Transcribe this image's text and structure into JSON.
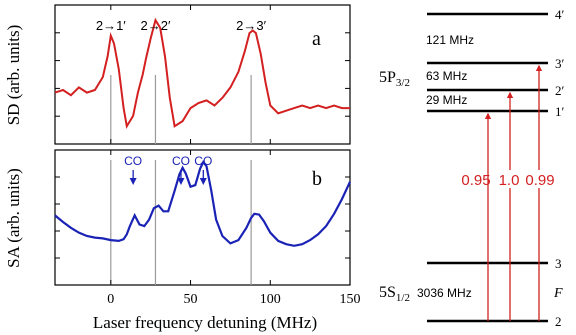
{
  "chart_data": [
    {
      "id": "a",
      "type": "line",
      "panel_label": "a",
      "ylabel": "SD (arb. units)",
      "xlim": [
        -35,
        150
      ],
      "color": "#d42020",
      "series": [
        {
          "x": [
            -35,
            -30,
            -25,
            -20,
            -15,
            -10,
            -5,
            -2,
            0,
            2,
            5,
            8,
            10,
            14,
            17,
            20,
            22,
            25,
            28,
            31,
            34,
            37,
            40,
            45,
            50,
            55,
            60,
            65,
            70,
            75,
            80,
            84,
            87,
            89,
            91,
            94,
            97,
            100,
            105,
            110,
            115,
            120,
            125,
            130,
            135,
            140,
            145,
            150
          ],
          "y": [
            -0.2,
            -0.15,
            -0.25,
            -0.1,
            -0.2,
            -0.15,
            0.1,
            0.5,
            0.9,
            0.75,
            0.25,
            -0.5,
            -0.85,
            -0.65,
            -0.2,
            0.15,
            0.45,
            0.85,
            1.2,
            1.05,
            0.5,
            -0.3,
            -0.85,
            -0.75,
            -0.5,
            -0.4,
            -0.35,
            -0.45,
            -0.3,
            -0.1,
            0.2,
            0.6,
            0.95,
            1.0,
            0.95,
            0.55,
            0.0,
            -0.45,
            -0.6,
            -0.55,
            -0.5,
            -0.45,
            -0.5,
            -0.45,
            -0.5,
            -0.45,
            -0.5,
            -0.5
          ]
        }
      ],
      "annotations": [
        {
          "text": "2→1′",
          "x": 0
        },
        {
          "text": "2→2′",
          "x": 28
        },
        {
          "text": "2→3′",
          "x": 88
        }
      ],
      "vlines": [
        0,
        28,
        88
      ]
    },
    {
      "id": "b",
      "type": "line",
      "panel_label": "b",
      "xlabel": "Laser frequency detuning (MHz)",
      "ylabel": "SA (arb. units)",
      "xlim": [
        -35,
        150
      ],
      "xticks": [
        0,
        50,
        100,
        150
      ],
      "color": "#1a23b5",
      "series": [
        {
          "x": [
            -35,
            -30,
            -25,
            -20,
            -15,
            -10,
            -5,
            0,
            5,
            8,
            10,
            12,
            15,
            18,
            21,
            24,
            27,
            30,
            33,
            36,
            40,
            43,
            45,
            47,
            50,
            53,
            56,
            58,
            60,
            63,
            66,
            70,
            75,
            80,
            85,
            88,
            90,
            93,
            96,
            100,
            105,
            110,
            115,
            120,
            125,
            130,
            135,
            140,
            145,
            150
          ],
          "y": [
            0.25,
            0.17,
            0.1,
            0.04,
            0.0,
            -0.02,
            -0.03,
            -0.05,
            -0.06,
            -0.04,
            0.02,
            0.12,
            0.25,
            0.14,
            0.12,
            0.2,
            0.34,
            0.37,
            0.3,
            0.3,
            0.55,
            0.75,
            0.83,
            0.76,
            0.6,
            0.62,
            0.82,
            0.9,
            0.85,
            0.55,
            0.2,
            0.0,
            -0.09,
            -0.05,
            0.1,
            0.22,
            0.27,
            0.26,
            0.18,
            0.04,
            -0.06,
            -0.1,
            -0.12,
            -0.1,
            -0.05,
            0.02,
            0.12,
            0.27,
            0.45,
            0.66
          ]
        }
      ],
      "annotations": [
        {
          "text": "CO",
          "x": 14
        },
        {
          "text": "CO",
          "x": 44
        },
        {
          "text": "CO",
          "x": 58
        }
      ],
      "vlines": [
        0,
        28,
        88
      ]
    },
    {
      "id": "levels",
      "type": "diagram",
      "upper_label": "5P3/2",
      "lower_label": "5S1/2",
      "f_label": "F",
      "upper_levels": [
        "4′",
        "3′",
        "2′",
        "1′"
      ],
      "lower_levels": [
        "3",
        "2"
      ],
      "spacings": [
        "121 MHz",
        "63 MHz",
        "29 MHz",
        "3036 MHz"
      ],
      "transitions": [
        "0.95",
        "1.0",
        "0.99"
      ],
      "arrow_color": "#d42020"
    }
  ]
}
